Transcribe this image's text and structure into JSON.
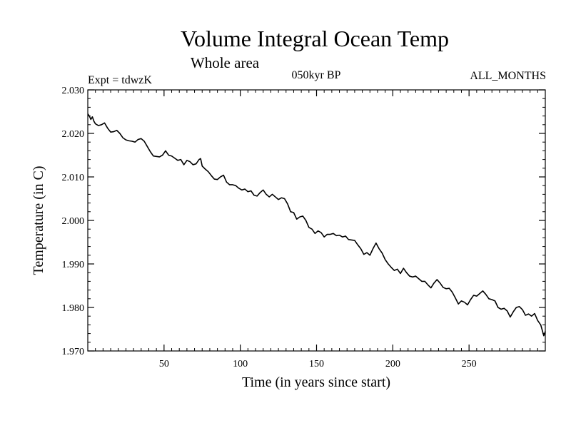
{
  "chart_data": {
    "type": "line",
    "title": "Volume Integral Ocean Temp",
    "subtitle": "Whole area",
    "experiment": "Expt = tdwzK",
    "period": "050kyr BP",
    "months": "ALL_MONTHS",
    "xlabel": "Time (in years since start)",
    "ylabel": "Temperature (in C)",
    "xlim": [
      0,
      300
    ],
    "ylim": [
      1.97,
      2.03
    ],
    "x_ticks": [
      50,
      100,
      150,
      200,
      250
    ],
    "x_tick_labels": [
      "50",
      "100",
      "150",
      "200",
      "250"
    ],
    "y_ticks": [
      1.97,
      1.98,
      1.99,
      2.0,
      2.01,
      2.02,
      2.03
    ],
    "y_tick_labels": [
      "1.970",
      "1.980",
      "1.990",
      "2.000",
      "2.010",
      "2.020",
      "2.030"
    ],
    "series": [
      {
        "color": "#000000",
        "points": [
          [
            0,
            2.0245
          ],
          [
            1,
            2.024
          ],
          [
            2,
            2.0232
          ],
          [
            3,
            2.0238
          ],
          [
            4,
            2.0228
          ],
          [
            5,
            2.0222
          ],
          [
            7,
            2.0218
          ],
          [
            9,
            2.022
          ],
          [
            11,
            2.0224
          ],
          [
            13,
            2.0212
          ],
          [
            15,
            2.0203
          ],
          [
            17,
            2.0204
          ],
          [
            19,
            2.0207
          ],
          [
            21,
            2.02
          ],
          [
            23,
            2.019
          ],
          [
            25,
            2.0185
          ],
          [
            27,
            2.0183
          ],
          [
            29,
            2.0182
          ],
          [
            31,
            2.018
          ],
          [
            33,
            2.0186
          ],
          [
            35,
            2.0188
          ],
          [
            37,
            2.0182
          ],
          [
            39,
            2.017
          ],
          [
            41,
            2.0158
          ],
          [
            43,
            2.0148
          ],
          [
            45,
            2.0147
          ],
          [
            47,
            2.0146
          ],
          [
            49,
            2.015
          ],
          [
            51,
            2.016
          ],
          [
            53,
            2.015
          ],
          [
            55,
            2.0148
          ],
          [
            57,
            2.0143
          ],
          [
            59,
            2.0138
          ],
          [
            61,
            2.014
          ],
          [
            63,
            2.0128
          ],
          [
            65,
            2.0138
          ],
          [
            67,
            2.0135
          ],
          [
            69,
            2.0128
          ],
          [
            71,
            2.013
          ],
          [
            73,
            2.014
          ],
          [
            74,
            2.0142
          ],
          [
            75,
            2.0125
          ],
          [
            77,
            2.0118
          ],
          [
            79,
            2.0112
          ],
          [
            81,
            2.0103
          ],
          [
            83,
            2.0095
          ],
          [
            85,
            2.0094
          ],
          [
            87,
            2.01
          ],
          [
            89,
            2.0104
          ],
          [
            91,
            2.0088
          ],
          [
            93,
            2.0082
          ],
          [
            95,
            2.0082
          ],
          [
            97,
            2.008
          ],
          [
            99,
            2.0074
          ],
          [
            101,
            2.007
          ],
          [
            103,
            2.0072
          ],
          [
            105,
            2.0066
          ],
          [
            107,
            2.0068
          ],
          [
            109,
            2.0058
          ],
          [
            111,
            2.0056
          ],
          [
            113,
            2.0064
          ],
          [
            115,
            2.007
          ],
          [
            117,
            2.006
          ],
          [
            119,
            2.0054
          ],
          [
            121,
            2.006
          ],
          [
            123,
            2.0054
          ],
          [
            125,
            2.0048
          ],
          [
            127,
            2.0052
          ],
          [
            129,
            2.005
          ],
          [
            131,
            2.0038
          ],
          [
            133,
            2.002
          ],
          [
            135,
            2.0018
          ],
          [
            137,
            2.0003
          ],
          [
            139,
            2.0008
          ],
          [
            141,
            2.001
          ],
          [
            143,
            2.0
          ],
          [
            145,
            1.9984
          ],
          [
            147,
            1.998
          ],
          [
            149,
            1.997
          ],
          [
            151,
            1.9976
          ],
          [
            153,
            1.9972
          ],
          [
            155,
            1.9962
          ],
          [
            157,
            1.9968
          ],
          [
            159,
            1.9968
          ],
          [
            161,
            1.997
          ],
          [
            163,
            1.9965
          ],
          [
            165,
            1.9966
          ],
          [
            167,
            1.9962
          ],
          [
            169,
            1.9964
          ],
          [
            171,
            1.9956
          ],
          [
            173,
            1.9955
          ],
          [
            175,
            1.9954
          ],
          [
            177,
            1.9944
          ],
          [
            179,
            1.9935
          ],
          [
            181,
            1.9922
          ],
          [
            183,
            1.9926
          ],
          [
            185,
            1.992
          ],
          [
            187,
            1.9935
          ],
          [
            189,
            1.9948
          ],
          [
            191,
            1.9935
          ],
          [
            193,
            1.9925
          ],
          [
            195,
            1.991
          ],
          [
            197,
            1.99
          ],
          [
            199,
            1.9892
          ],
          [
            201,
            1.9885
          ],
          [
            203,
            1.9888
          ],
          [
            205,
            1.9878
          ],
          [
            207,
            1.989
          ],
          [
            209,
            1.988
          ],
          [
            211,
            1.9872
          ],
          [
            213,
            1.987
          ],
          [
            215,
            1.9872
          ],
          [
            217,
            1.9866
          ],
          [
            219,
            1.986
          ],
          [
            221,
            1.986
          ],
          [
            223,
            1.9852
          ],
          [
            225,
            1.9845
          ],
          [
            227,
            1.9856
          ],
          [
            229,
            1.9864
          ],
          [
            231,
            1.9856
          ],
          [
            233,
            1.9846
          ],
          [
            235,
            1.9843
          ],
          [
            237,
            1.9844
          ],
          [
            239,
            1.9835
          ],
          [
            241,
            1.9822
          ],
          [
            243,
            1.9808
          ],
          [
            245,
            1.9815
          ],
          [
            247,
            1.9812
          ],
          [
            249,
            1.9806
          ],
          [
            251,
            1.9818
          ],
          [
            253,
            1.9828
          ],
          [
            255,
            1.9826
          ],
          [
            257,
            1.9832
          ],
          [
            259,
            1.9838
          ],
          [
            261,
            1.983
          ],
          [
            263,
            1.982
          ],
          [
            265,
            1.9818
          ],
          [
            267,
            1.9815
          ],
          [
            269,
            1.98
          ],
          [
            271,
            1.9796
          ],
          [
            273,
            1.9798
          ],
          [
            275,
            1.9792
          ],
          [
            277,
            1.9778
          ],
          [
            279,
            1.979
          ],
          [
            281,
            1.98
          ],
          [
            283,
            1.9802
          ],
          [
            285,
            1.9795
          ],
          [
            287,
            1.9782
          ],
          [
            289,
            1.9785
          ],
          [
            291,
            1.978
          ],
          [
            293,
            1.9786
          ],
          [
            295,
            1.977
          ],
          [
            297,
            1.976
          ],
          [
            299,
            1.9735
          ],
          [
            300,
            1.9745
          ]
        ]
      }
    ]
  }
}
